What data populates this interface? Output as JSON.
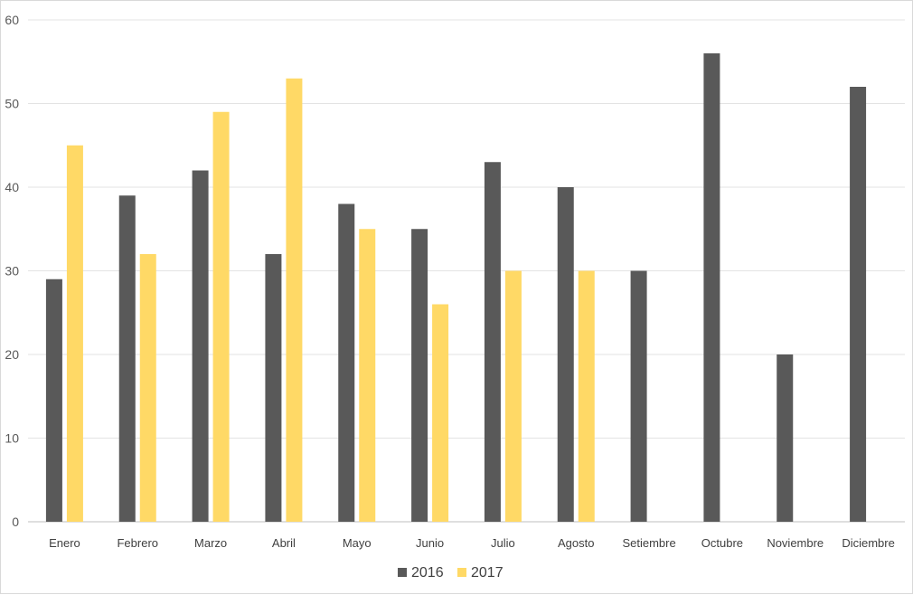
{
  "chart_data": {
    "type": "bar",
    "title": "",
    "xlabel": "",
    "ylabel": "",
    "ylim": [
      0,
      60
    ],
    "yticks": [
      0,
      10,
      20,
      30,
      40,
      50,
      60
    ],
    "grid": true,
    "legend_position": "bottom",
    "categories": [
      "Enero",
      "Febrero",
      "Marzo",
      "Abril",
      "Mayo",
      "Junio",
      "Julio",
      "Agosto",
      "Setiembre",
      "Octubre",
      "Noviembre",
      "Diciembre"
    ],
    "series": [
      {
        "name": "2016",
        "color": "#595959",
        "values": [
          29,
          39,
          42,
          32,
          38,
          35,
          43,
          40,
          30,
          56,
          20,
          52
        ]
      },
      {
        "name": "2017",
        "color": "#ffd966",
        "values": [
          45,
          32,
          49,
          53,
          35,
          26,
          30,
          30,
          null,
          null,
          null,
          null
        ]
      }
    ]
  }
}
